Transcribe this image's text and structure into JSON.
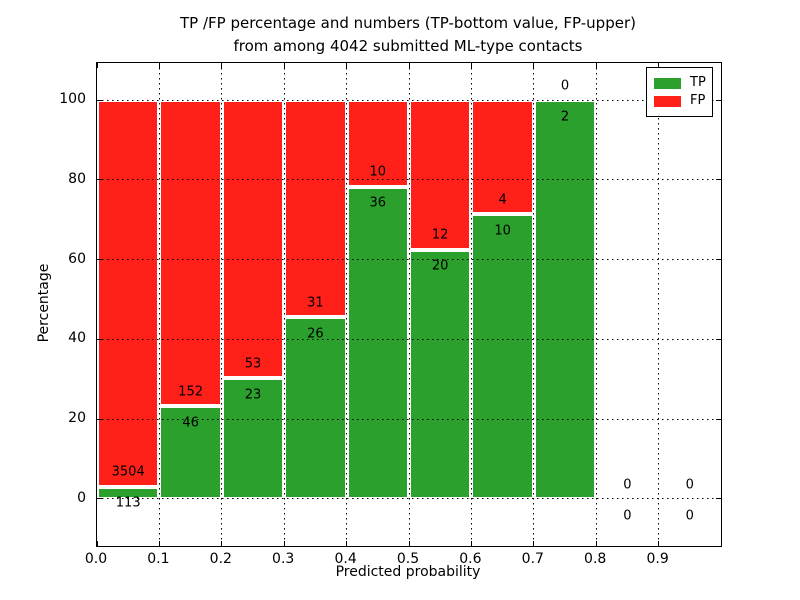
{
  "chart_data": {
    "type": "bar",
    "stacked": true,
    "normalized_to_percent": true,
    "title": "TP /FP percentage and numbers (TP-bottom value, FP-upper) from among 4042 submitted ML-type contacts",
    "title_lines": [
      "TP /FP percentage and numbers (TP-bottom value, FP-upper)",
      "from among 4042 submitted ML-type contacts"
    ],
    "xlabel": "Predicted probability",
    "ylabel": "Percentage",
    "xlim": [
      0.0,
      1.0
    ],
    "ylim": [
      -11.8,
      109.3
    ],
    "xticks": [
      "0.0",
      "0.1",
      "0.2",
      "0.3",
      "0.4",
      "0.5",
      "0.6",
      "0.7",
      "0.8",
      "0.9"
    ],
    "yticks": [
      0,
      20,
      40,
      60,
      80,
      100
    ],
    "grid": "dotted",
    "legend": {
      "position": "upper-right",
      "entries": [
        {
          "label": "TP",
          "color": "#2ca02c"
        },
        {
          "label": "FP",
          "color": "#ff2019"
        }
      ]
    },
    "bins": [
      {
        "range": [
          0.0,
          0.1
        ],
        "tp": 113,
        "fp": 3504,
        "tp_pct": 3.1
      },
      {
        "range": [
          0.1,
          0.2
        ],
        "tp": 46,
        "fp": 152,
        "tp_pct": 23.2
      },
      {
        "range": [
          0.2,
          0.3
        ],
        "tp": 23,
        "fp": 53,
        "tp_pct": 30.3
      },
      {
        "range": [
          0.3,
          0.4
        ],
        "tp": 26,
        "fp": 31,
        "tp_pct": 45.6
      },
      {
        "range": [
          0.4,
          0.5
        ],
        "tp": 36,
        "fp": 10,
        "tp_pct": 78.3
      },
      {
        "range": [
          0.5,
          0.6
        ],
        "tp": 20,
        "fp": 12,
        "tp_pct": 62.5
      },
      {
        "range": [
          0.6,
          0.7
        ],
        "tp": 10,
        "fp": 4,
        "tp_pct": 71.4
      },
      {
        "range": [
          0.7,
          0.8
        ],
        "tp": 2,
        "fp": 0,
        "tp_pct": 100
      },
      {
        "range": [
          0.8,
          0.9
        ],
        "tp": 0,
        "fp": 0,
        "tp_pct": 0
      },
      {
        "range": [
          0.9,
          1.0
        ],
        "tp": 0,
        "fp": 0,
        "tp_pct": 0
      }
    ]
  }
}
